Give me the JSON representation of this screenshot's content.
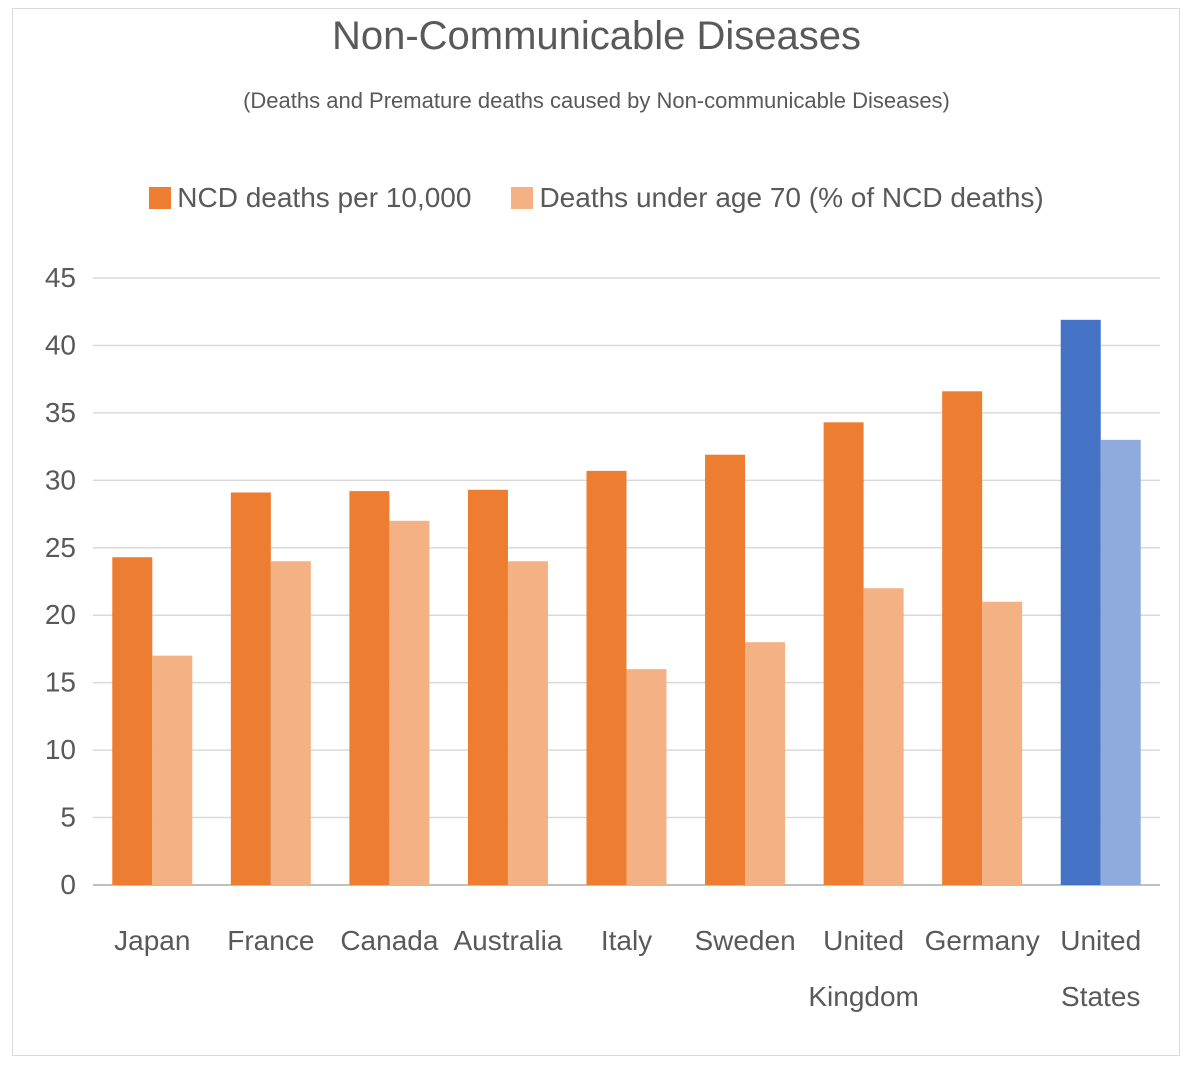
{
  "chart_data": {
    "type": "bar",
    "title": "Non-Communicable Diseases",
    "subtitle": "(Deaths and Premature deaths caused by Non-communicable Diseases)",
    "categories": [
      [
        "Japan"
      ],
      [
        "France"
      ],
      [
        "Canada"
      ],
      [
        "Australia"
      ],
      [
        "Italy"
      ],
      [
        "Sweden"
      ],
      [
        "United",
        "Kingdom"
      ],
      [
        "Germany"
      ],
      [
        "United",
        "States"
      ]
    ],
    "series": [
      {
        "name": "NCD deaths per 10,000",
        "values": [
          24.3,
          29.1,
          29.2,
          29.3,
          30.7,
          31.9,
          34.3,
          36.6,
          41.9
        ],
        "color": "#ED7D31",
        "highlight_color": "#4472C4"
      },
      {
        "name": "Deaths under age 70 (% of NCD deaths)",
        "values": [
          17,
          24,
          27,
          24,
          16,
          18,
          22,
          21,
          33
        ],
        "color": "#F4B183",
        "highlight_color": "#8FAADC"
      }
    ],
    "highlight_index": 8,
    "ylim": [
      0,
      45
    ],
    "yticks": [
      0,
      5,
      10,
      15,
      20,
      25,
      30,
      35,
      40,
      45
    ],
    "grid": true,
    "legend_position": "top",
    "gridline_color": "#d9d9d9"
  }
}
